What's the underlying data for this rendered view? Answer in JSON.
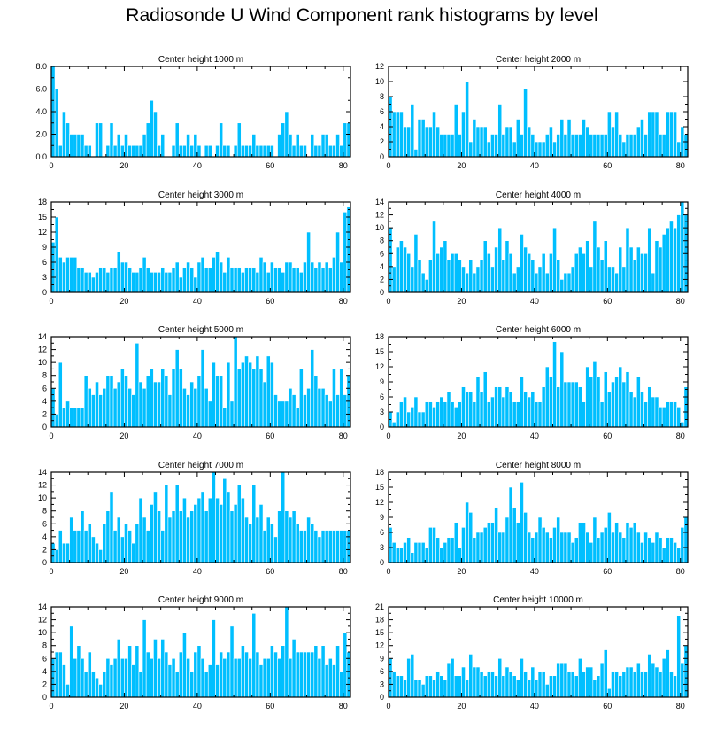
{
  "title": "Radiosonde U Wind Component rank histograms by level",
  "colors": {
    "bar": "#00BFFF",
    "bar_edge": "#FFFFFF",
    "axis": "#000000",
    "background": "#FFFFFF"
  },
  "chart_data": [
    {
      "type": "bar",
      "title": "Center height 1000 m",
      "xlabel": "",
      "ylabel": "",
      "xlim": [
        0,
        82
      ],
      "ylim": [
        0,
        8
      ],
      "xticks": [
        0,
        20,
        40,
        60,
        80
      ],
      "yticks": [
        0,
        2,
        4,
        6,
        8
      ],
      "ytick_labels": [
        "0.0",
        "2.0",
        "4.0",
        "6.0",
        "8.0"
      ],
      "x_start": 0,
      "values": [
        8,
        6,
        1,
        4,
        3,
        2,
        2,
        2,
        2,
        1,
        1,
        0,
        3,
        3,
        0,
        1,
        3,
        1,
        2,
        1,
        2,
        1,
        1,
        1,
        1,
        2,
        3,
        5,
        4,
        1,
        2,
        0,
        0,
        1,
        3,
        1,
        1,
        2,
        1,
        2,
        1,
        0,
        1,
        1,
        0,
        1,
        3,
        1,
        1,
        0,
        1,
        3,
        1,
        1,
        1,
        2,
        1,
        1,
        1,
        1,
        1,
        0,
        2,
        3,
        4,
        2,
        1,
        2,
        1,
        1,
        0,
        2,
        1,
        1,
        2,
        2,
        1,
        1,
        2,
        1,
        3,
        3
      ]
    },
    {
      "type": "bar",
      "title": "Center height 2000 m",
      "xlabel": "",
      "ylabel": "",
      "xlim": [
        0,
        82
      ],
      "ylim": [
        0,
        12
      ],
      "xticks": [
        0,
        20,
        40,
        60,
        80
      ],
      "yticks": [
        0,
        2,
        4,
        6,
        8,
        10,
        12
      ],
      "ytick_labels": [
        "0",
        "2",
        "4",
        "6",
        "8",
        "10",
        "12"
      ],
      "x_start": 0,
      "values": [
        8,
        6,
        6,
        6,
        4,
        4,
        7,
        1,
        5,
        5,
        4,
        4,
        6,
        4,
        3,
        3,
        3,
        3,
        7,
        3,
        6,
        10,
        2,
        5,
        4,
        4,
        4,
        2,
        3,
        3,
        7,
        3,
        4,
        4,
        2,
        5,
        3,
        9,
        4,
        3,
        2,
        2,
        2,
        3,
        4,
        2,
        3,
        5,
        3,
        5,
        3,
        3,
        3,
        5,
        4,
        3,
        3,
        3,
        3,
        3,
        6,
        4,
        6,
        3,
        2,
        3,
        3,
        3,
        4,
        5,
        3,
        6,
        6,
        6,
        3,
        3,
        6,
        6,
        6,
        2,
        4,
        3
      ]
    },
    {
      "type": "bar",
      "title": "Center height 3000 m",
      "xlabel": "",
      "ylabel": "",
      "xlim": [
        0,
        82
      ],
      "ylim": [
        0,
        18
      ],
      "xticks": [
        0,
        20,
        40,
        60,
        80
      ],
      "yticks": [
        0,
        3,
        6,
        9,
        12,
        15,
        18
      ],
      "ytick_labels": [
        "0",
        "3",
        "6",
        "9",
        "12",
        "15",
        "18"
      ],
      "x_start": 0,
      "values": [
        10,
        15,
        7,
        6,
        7,
        7,
        7,
        5,
        5,
        4,
        4,
        3,
        4,
        5,
        5,
        4,
        5,
        5,
        8,
        6,
        6,
        5,
        4,
        4,
        5,
        7,
        5,
        4,
        4,
        4,
        5,
        4,
        4,
        5,
        6,
        3,
        5,
        6,
        5,
        3,
        6,
        7,
        5,
        5,
        7,
        8,
        6,
        4,
        7,
        5,
        5,
        5,
        4,
        5,
        5,
        5,
        4,
        7,
        6,
        4,
        6,
        5,
        5,
        4,
        6,
        6,
        5,
        5,
        4,
        6,
        12,
        6,
        5,
        6,
        5,
        6,
        5,
        7,
        12,
        6,
        16,
        17
      ]
    },
    {
      "type": "bar",
      "title": "Center height 4000 m",
      "xlabel": "",
      "ylabel": "",
      "xlim": [
        0,
        82
      ],
      "ylim": [
        0,
        14
      ],
      "xticks": [
        0,
        20,
        40,
        60,
        80
      ],
      "yticks": [
        0,
        2,
        4,
        6,
        8,
        10,
        12,
        14
      ],
      "ytick_labels": [
        "0",
        "2",
        "4",
        "6",
        "8",
        "10",
        "12",
        "14"
      ],
      "x_start": 0,
      "values": [
        10,
        4,
        7,
        8,
        7,
        6,
        4,
        9,
        5,
        3,
        2,
        5,
        11,
        6,
        7,
        8,
        5,
        6,
        6,
        5,
        4,
        3,
        5,
        3,
        4,
        5,
        8,
        6,
        4,
        7,
        10,
        5,
        8,
        6,
        3,
        4,
        9,
        7,
        6,
        5,
        3,
        4,
        6,
        3,
        6,
        10,
        5,
        2,
        3,
        3,
        4,
        6,
        7,
        6,
        8,
        4,
        11,
        7,
        5,
        8,
        4,
        4,
        3,
        7,
        4,
        10,
        7,
        5,
        7,
        6,
        6,
        10,
        3,
        8,
        7,
        9,
        10,
        11,
        10,
        12,
        14,
        12
      ]
    },
    {
      "type": "bar",
      "title": "Center height 5000 m",
      "xlabel": "",
      "ylabel": "",
      "xlim": [
        0,
        82
      ],
      "ylim": [
        0,
        14
      ],
      "xticks": [
        0,
        20,
        40,
        60,
        80
      ],
      "yticks": [
        0,
        2,
        4,
        6,
        8,
        10,
        12,
        14
      ],
      "ytick_labels": [
        "0",
        "2",
        "4",
        "6",
        "8",
        "10",
        "12",
        "14"
      ],
      "x_start": 0,
      "values": [
        6,
        2,
        10,
        3,
        4,
        3,
        3,
        3,
        3,
        8,
        6,
        5,
        7,
        5,
        6,
        8,
        8,
        6,
        7,
        9,
        8,
        6,
        5,
        13,
        7,
        6,
        8,
        9,
        7,
        7,
        9,
        8,
        5,
        9,
        12,
        9,
        6,
        5,
        7,
        6,
        8,
        12,
        6,
        4,
        10,
        8,
        8,
        3,
        10,
        4,
        14,
        9,
        10,
        11,
        10,
        9,
        11,
        9,
        7,
        11,
        10,
        5,
        4,
        4,
        4,
        6,
        5,
        3,
        9,
        5,
        6,
        12,
        8,
        6,
        6,
        5,
        4,
        9,
        5,
        9,
        5,
        8
      ]
    },
    {
      "type": "bar",
      "title": "Center height 6000 m",
      "xlabel": "",
      "ylabel": "",
      "xlim": [
        0,
        82
      ],
      "ylim": [
        0,
        18
      ],
      "xticks": [
        0,
        20,
        40,
        60,
        80
      ],
      "yticks": [
        0,
        3,
        6,
        9,
        12,
        15,
        18
      ],
      "ytick_labels": [
        "0",
        "3",
        "6",
        "9",
        "12",
        "15",
        "18"
      ],
      "x_start": 0,
      "values": [
        3,
        1,
        3,
        5,
        6,
        3,
        4,
        6,
        3,
        3,
        5,
        5,
        4,
        5,
        6,
        5,
        7,
        5,
        4,
        5,
        8,
        7,
        7,
        5,
        10,
        7,
        11,
        5,
        6,
        8,
        8,
        6,
        8,
        7,
        5,
        5,
        10,
        7,
        6,
        7,
        5,
        5,
        8,
        12,
        10,
        17,
        8,
        15,
        9,
        9,
        9,
        9,
        8,
        5,
        12,
        10,
        13,
        10,
        5,
        11,
        7,
        9,
        10,
        12,
        9,
        11,
        7,
        6,
        10,
        7,
        5,
        8,
        6,
        6,
        4,
        4,
        5,
        5,
        5,
        4,
        1,
        8
      ]
    },
    {
      "type": "bar",
      "title": "Center height 7000 m",
      "xlabel": "",
      "ylabel": "",
      "xlim": [
        0,
        82
      ],
      "ylim": [
        0,
        14
      ],
      "xticks": [
        0,
        20,
        40,
        60,
        80
      ],
      "yticks": [
        0,
        2,
        4,
        6,
        8,
        10,
        12,
        14
      ],
      "ytick_labels": [
        "0",
        "2",
        "4",
        "6",
        "8",
        "10",
        "12",
        "14"
      ],
      "x_start": 0,
      "values": [
        3,
        2,
        5,
        3,
        3,
        7,
        5,
        5,
        8,
        5,
        6,
        4,
        3,
        2,
        6,
        8,
        11,
        5,
        7,
        4,
        6,
        5,
        3,
        6,
        10,
        7,
        5,
        9,
        11,
        8,
        5,
        12,
        7,
        8,
        12,
        8,
        10,
        7,
        8,
        9,
        10,
        11,
        8,
        10,
        14,
        10,
        9,
        13,
        11,
        8,
        9,
        12,
        10,
        7,
        6,
        12,
        7,
        9,
        5,
        7,
        6,
        4,
        8,
        14,
        8,
        7,
        8,
        6,
        5,
        5,
        7,
        6,
        5,
        4,
        5,
        5,
        5,
        5,
        5,
        5,
        5,
        5
      ]
    },
    {
      "type": "bar",
      "title": "Center height 8000 m",
      "xlabel": "",
      "ylabel": "",
      "xlim": [
        0,
        82
      ],
      "ylim": [
        0,
        18
      ],
      "xticks": [
        0,
        20,
        40,
        60,
        80
      ],
      "yticks": [
        0,
        3,
        6,
        9,
        12,
        15,
        18
      ],
      "ytick_labels": [
        "0",
        "3",
        "6",
        "9",
        "12",
        "15",
        "18"
      ],
      "x_start": 0,
      "values": [
        7,
        4,
        3,
        3,
        4,
        5,
        2,
        4,
        4,
        4,
        3,
        7,
        7,
        5,
        3,
        4,
        5,
        5,
        8,
        3,
        7,
        12,
        10,
        5,
        6,
        6,
        7,
        8,
        8,
        11,
        6,
        6,
        9,
        15,
        11,
        8,
        16,
        10,
        6,
        5,
        6,
        9,
        7,
        6,
        5,
        7,
        9,
        6,
        6,
        6,
        4,
        5,
        8,
        8,
        6,
        4,
        9,
        5,
        6,
        7,
        10,
        6,
        8,
        6,
        5,
        8,
        7,
        8,
        6,
        4,
        6,
        5,
        4,
        6,
        5,
        3,
        5,
        5,
        4,
        3,
        7,
        9
      ]
    },
    {
      "type": "bar",
      "title": "Center height 9000 m",
      "xlabel": "",
      "ylabel": "",
      "xlim": [
        0,
        82
      ],
      "ylim": [
        0,
        14
      ],
      "xticks": [
        0,
        20,
        40,
        60,
        80
      ],
      "yticks": [
        0,
        2,
        4,
        6,
        8,
        10,
        12,
        14
      ],
      "ytick_labels": [
        "0",
        "2",
        "4",
        "6",
        "8",
        "10",
        "12",
        "14"
      ],
      "x_start": 0,
      "values": [
        6,
        7,
        7,
        5,
        2,
        11,
        6,
        8,
        6,
        4,
        7,
        4,
        3,
        2,
        4,
        6,
        5,
        6,
        9,
        6,
        6,
        8,
        5,
        8,
        4,
        12,
        7,
        6,
        9,
        6,
        9,
        7,
        5,
        6,
        4,
        7,
        10,
        6,
        4,
        7,
        8,
        6,
        4,
        5,
        12,
        5,
        7,
        6,
        7,
        11,
        6,
        6,
        8,
        7,
        6,
        13,
        7,
        5,
        6,
        6,
        8,
        7,
        6,
        8,
        14,
        6,
        9,
        7,
        7,
        7,
        7,
        7,
        8,
        6,
        8,
        5,
        6,
        5,
        8,
        4,
        10,
        7
      ]
    },
    {
      "type": "bar",
      "title": "Center height 10000 m",
      "xlabel": "",
      "ylabel": "",
      "xlim": [
        0,
        82
      ],
      "ylim": [
        0,
        21
      ],
      "xticks": [
        0,
        20,
        40,
        60,
        80
      ],
      "yticks": [
        0,
        3,
        6,
        9,
        12,
        15,
        18,
        21
      ],
      "ytick_labels": [
        "0",
        "3",
        "6",
        "9",
        "12",
        "15",
        "18",
        "21"
      ],
      "x_start": 0,
      "values": [
        9,
        6,
        5,
        5,
        4,
        9,
        10,
        4,
        4,
        3,
        5,
        5,
        4,
        6,
        5,
        4,
        8,
        9,
        5,
        5,
        7,
        4,
        10,
        7,
        7,
        6,
        5,
        6,
        6,
        5,
        9,
        5,
        7,
        6,
        5,
        4,
        9,
        6,
        4,
        7,
        4,
        6,
        6,
        3,
        5,
        5,
        8,
        8,
        8,
        6,
        6,
        5,
        9,
        6,
        7,
        7,
        4,
        5,
        8,
        11,
        2,
        6,
        6,
        5,
        6,
        7,
        7,
        6,
        8,
        6,
        6,
        10,
        8,
        7,
        6,
        9,
        11,
        6,
        5,
        19,
        8,
        12
      ]
    }
  ]
}
